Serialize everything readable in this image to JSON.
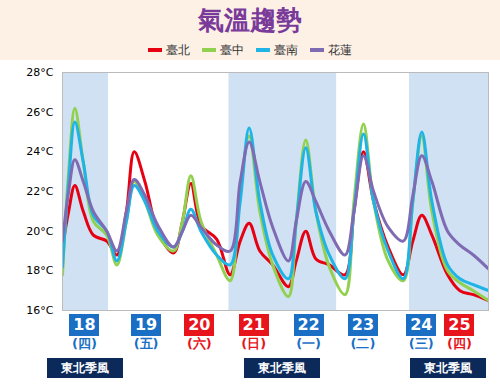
{
  "chart_data": {
    "type": "line",
    "title": "氣溫趨勢",
    "legend": "top",
    "x": [
      18.0,
      18.11,
      18.22,
      18.37,
      18.55,
      18.79,
      18.97,
      19.14,
      19.28,
      19.47,
      19.7,
      19.98,
      20.14,
      20.29,
      20.47,
      20.75,
      20.99,
      21.17,
      21.33,
      21.52,
      21.75,
      22.03,
      22.17,
      22.34,
      22.52,
      22.76,
      23.04,
      23.2,
      23.37,
      23.55,
      23.81,
      24.08,
      24.25,
      24.41,
      24.59,
      24.87,
      25.09,
      25.33,
      25.6
    ],
    "xlim": [
      18,
      25.6
    ],
    "xticks": [
      {
        "value": 18.4,
        "label": "18"
      },
      {
        "value": 19.5,
        "label": "19"
      },
      {
        "value": 20.45,
        "label": "20"
      },
      {
        "value": 21.42,
        "label": "21"
      },
      {
        "value": 22.4,
        "label": "22"
      },
      {
        "value": 23.37,
        "label": "23"
      },
      {
        "value": 24.41,
        "label": "24"
      },
      {
        "value": 25.09,
        "label": "25"
      }
    ],
    "weekday_labels": [
      "(四)",
      "(五)",
      "(六)",
      "(日)",
      "(一)",
      "(二)",
      "(三)",
      "(四)"
    ],
    "colors": [
      "#1a6fc4",
      "#1a6fc4",
      "#e8141c",
      "#e8141c",
      "#1a6fc4",
      "#1a6fc4",
      "#1a6fc4",
      "#e8141c"
    ],
    "ylim": [
      16,
      28
    ],
    "yticks": [
      {
        "value": 16,
        "label": "16°C"
      },
      {
        "value": 18,
        "label": "18°C"
      },
      {
        "value": 20,
        "label": "20°C"
      },
      {
        "value": 22,
        "label": "22°C"
      },
      {
        "value": 24,
        "label": "24°C"
      },
      {
        "value": 26,
        "label": "26°C"
      },
      {
        "value": 28,
        "label": "28°C"
      }
    ],
    "shaded_ranges": [
      {
        "from": 18.0,
        "to": 18.82,
        "label": "東北季風"
      },
      {
        "from": 20.97,
        "to": 22.89,
        "label": "東北季風"
      },
      {
        "from": 24.19,
        "to": 25.6,
        "label": "東北季風"
      }
    ],
    "series": [
      {
        "name": "臺北",
        "color": "#e60012",
        "values": [
          19.2,
          21.0,
          22.3,
          21.0,
          19.8,
          19.5,
          18.8,
          21.0,
          24.0,
          22.5,
          20.0,
          18.9,
          20.5,
          22.4,
          20.3,
          19.6,
          17.8,
          19.5,
          20.4,
          19.0,
          18.3,
          17.2,
          18.5,
          20.0,
          18.6,
          18.3,
          17.8,
          21.0,
          24.0,
          21.5,
          19.2,
          17.8,
          19.5,
          20.8,
          19.8,
          17.8,
          17.0,
          16.8,
          16.5
        ]
      },
      {
        "name": "臺中",
        "color": "#92d050",
        "values": [
          17.8,
          23.0,
          26.2,
          23.5,
          20.5,
          19.8,
          18.3,
          20.5,
          22.5,
          21.5,
          19.8,
          19.0,
          20.5,
          22.8,
          20.5,
          18.8,
          17.5,
          22.0,
          24.8,
          21.0,
          18.3,
          16.7,
          20.5,
          24.6,
          21.0,
          18.2,
          16.8,
          21.5,
          25.4,
          21.5,
          18.5,
          17.5,
          21.5,
          24.8,
          21.0,
          18.0,
          17.4,
          17.0,
          16.5
        ]
      },
      {
        "name": "臺南",
        "color": "#1eb4e6",
        "values": [
          18.2,
          22.5,
          25.5,
          23.5,
          20.8,
          20.0,
          18.5,
          20.5,
          22.3,
          21.5,
          20.0,
          19.2,
          20.0,
          21.1,
          20.0,
          18.8,
          18.3,
          21.5,
          25.2,
          21.5,
          18.8,
          17.6,
          20.5,
          24.2,
          21.0,
          18.8,
          17.6,
          21.0,
          24.9,
          21.5,
          19.0,
          17.6,
          21.5,
          25.0,
          21.5,
          18.3,
          17.6,
          17.3,
          17.0
        ]
      },
      {
        "name": "花蓮",
        "color": "#7f6bb3",
        "values": [
          19.5,
          22.0,
          23.6,
          22.5,
          21.0,
          20.0,
          19.0,
          21.0,
          22.6,
          21.8,
          20.3,
          19.2,
          20.0,
          20.8,
          20.2,
          19.3,
          19.0,
          22.5,
          24.5,
          22.5,
          20.2,
          18.5,
          20.5,
          22.5,
          21.5,
          20.0,
          18.8,
          21.0,
          23.8,
          22.0,
          20.2,
          19.5,
          21.8,
          23.8,
          22.5,
          20.0,
          19.3,
          18.8,
          18.1
        ]
      }
    ]
  }
}
